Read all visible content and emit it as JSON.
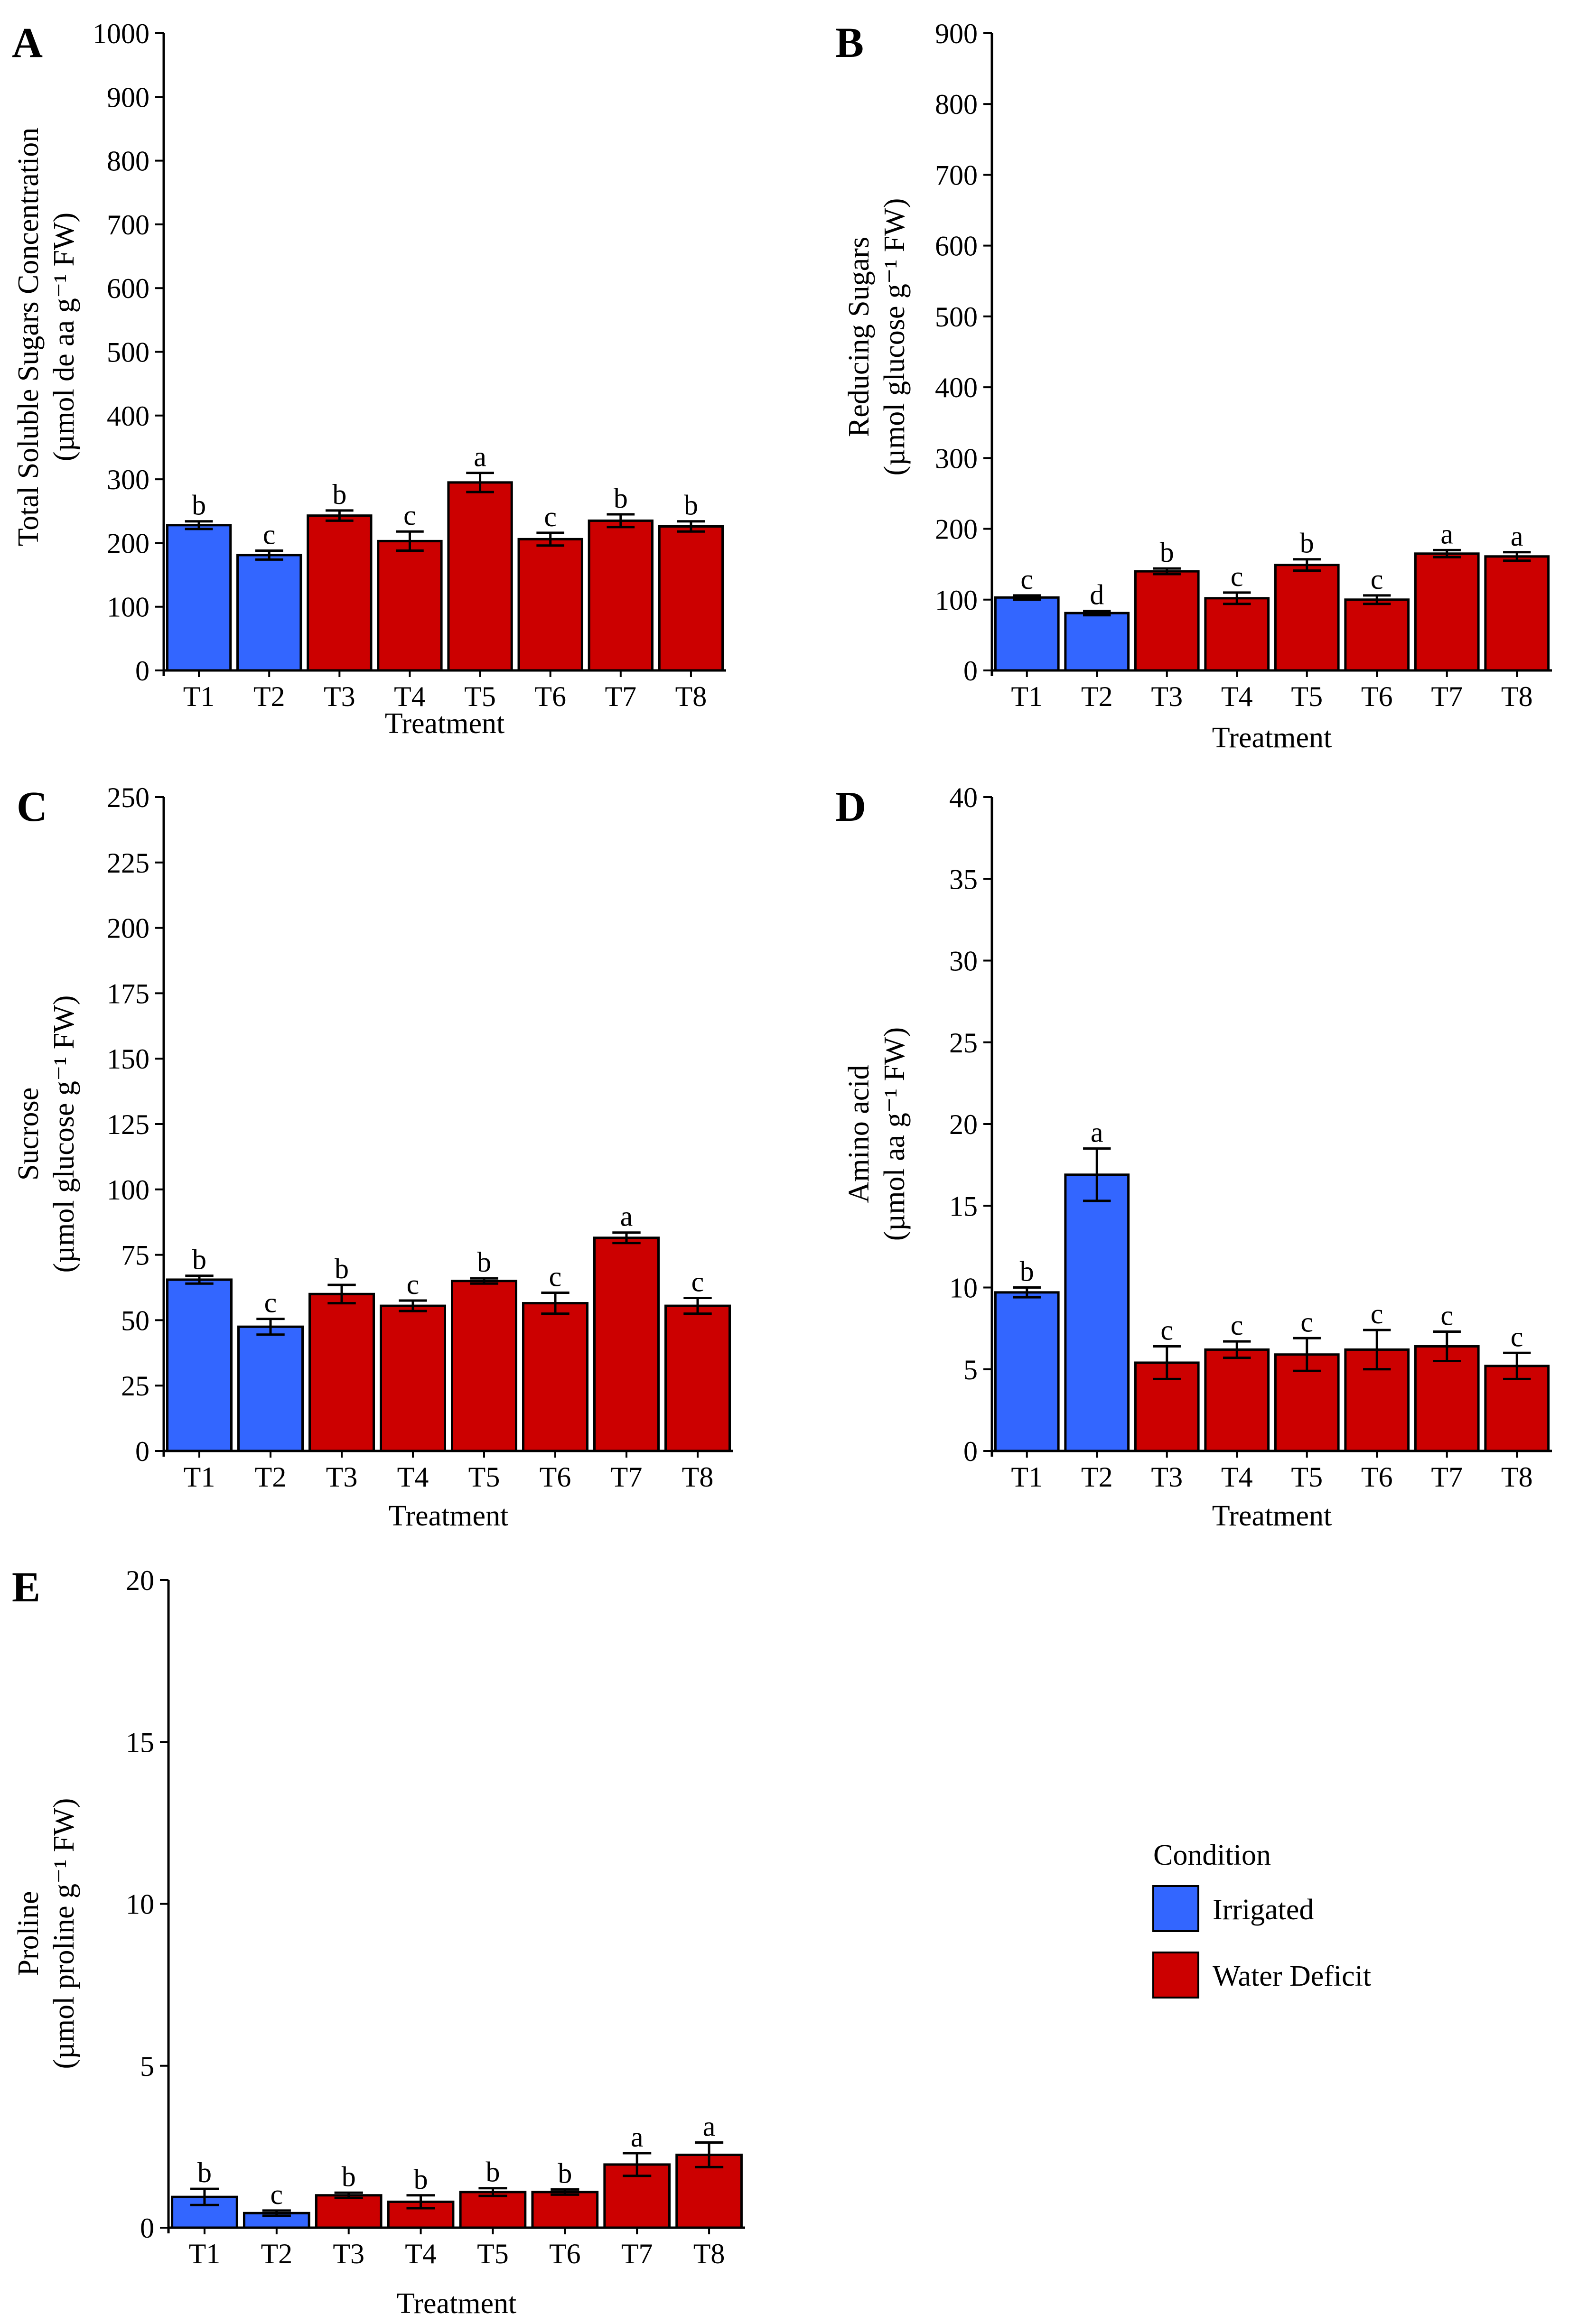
{
  "colors": {
    "irrigated": "#3366FF",
    "water_deficit": "#CC0000",
    "axis": "#000000"
  },
  "legend": {
    "title": "Condition",
    "items": [
      {
        "label": "Irrigated",
        "color": "#3366FF"
      },
      {
        "label": "Water Deficit",
        "color": "#CC0000"
      }
    ]
  },
  "chart_data": [
    {
      "panel": "A",
      "type": "bar",
      "title": "",
      "xlabel": "Treatment",
      "ylabel_line1": "Total Soluble Sugars Concentration",
      "ylabel_line2": "(µmol de aa g⁻¹ FW)",
      "ylim": [
        0,
        1000
      ],
      "yticks": [
        0,
        100,
        200,
        300,
        400,
        500,
        600,
        700,
        800,
        900,
        1000
      ],
      "categories": [
        "T1",
        "T2",
        "T3",
        "T4",
        "T5",
        "T6",
        "T7",
        "T8"
      ],
      "conditions": [
        "Irrigated",
        "Irrigated",
        "Water Deficit",
        "Water Deficit",
        "Water Deficit",
        "Water Deficit",
        "Water Deficit",
        "Water Deficit"
      ],
      "values": [
        228,
        181,
        243,
        203,
        295,
        206,
        235,
        226
      ],
      "errors": [
        6,
        7,
        8,
        15,
        15,
        10,
        10,
        8
      ],
      "letters": [
        "b",
        "c",
        "b",
        "c",
        "a",
        "c",
        "b",
        "b"
      ]
    },
    {
      "panel": "B",
      "type": "bar",
      "title": "",
      "xlabel": "Treatment",
      "ylabel_line1": "Reducing Sugars",
      "ylabel_line2": "(µmol glucose g⁻¹ FW)",
      "ylim": [
        0,
        900
      ],
      "yticks": [
        0,
        100,
        200,
        300,
        400,
        500,
        600,
        700,
        800,
        900
      ],
      "categories": [
        "T1",
        "T2",
        "T3",
        "T4",
        "T5",
        "T6",
        "T7",
        "T8"
      ],
      "conditions": [
        "Irrigated",
        "Irrigated",
        "Water Deficit",
        "Water Deficit",
        "Water Deficit",
        "Water Deficit",
        "Water Deficit",
        "Water Deficit"
      ],
      "values": [
        103,
        81,
        140,
        102,
        149,
        100,
        165,
        161
      ],
      "errors": [
        3,
        3,
        4,
        8,
        8,
        6,
        5,
        6
      ],
      "letters": [
        "c",
        "d",
        "b",
        "c",
        "b",
        "c",
        "a",
        "a"
      ]
    },
    {
      "panel": "C",
      "type": "bar",
      "title": "",
      "xlabel": "Treatment",
      "ylabel_line1": "Sucrose",
      "ylabel_line2": "(µmol glucose g⁻¹ FW)",
      "ylim": [
        0,
        250
      ],
      "yticks": [
        0,
        25,
        50,
        75,
        100,
        125,
        150,
        175,
        200,
        225,
        250
      ],
      "categories": [
        "T1",
        "T2",
        "T3",
        "T4",
        "T5",
        "T6",
        "T7",
        "T8"
      ],
      "conditions": [
        "Irrigated",
        "Irrigated",
        "Water Deficit",
        "Water Deficit",
        "Water Deficit",
        "Water Deficit",
        "Water Deficit",
        "Water Deficit"
      ],
      "values": [
        65.5,
        47.5,
        60,
        55.5,
        65,
        56.5,
        81.5,
        55.5
      ],
      "errors": [
        1.5,
        3,
        3.5,
        2,
        1,
        4,
        2,
        3
      ],
      "letters": [
        "b",
        "c",
        "b",
        "c",
        "b",
        "c",
        "a",
        "c"
      ]
    },
    {
      "panel": "D",
      "type": "bar",
      "title": "",
      "xlabel": "Treatment",
      "ylabel_line1": "Amino acid",
      "ylabel_line2": "(µmol aa g⁻¹ FW)",
      "ylim": [
        0,
        40
      ],
      "yticks": [
        0,
        5,
        10,
        15,
        20,
        25,
        30,
        35,
        40
      ],
      "categories": [
        "T1",
        "T2",
        "T3",
        "T4",
        "T5",
        "T6",
        "T7",
        "T8"
      ],
      "conditions": [
        "Irrigated",
        "Irrigated",
        "Water Deficit",
        "Water Deficit",
        "Water Deficit",
        "Water Deficit",
        "Water Deficit",
        "Water Deficit"
      ],
      "values": [
        9.7,
        16.9,
        5.4,
        6.2,
        5.9,
        6.2,
        6.4,
        5.2
      ],
      "errors": [
        0.3,
        1.6,
        1.0,
        0.5,
        1.0,
        1.2,
        0.9,
        0.8
      ],
      "letters": [
        "b",
        "a",
        "c",
        "c",
        "c",
        "c",
        "c",
        "c"
      ]
    },
    {
      "panel": "E",
      "type": "bar",
      "title": "",
      "xlabel": "Treatment",
      "ylabel_line1": "Proline",
      "ylabel_line2": "(µmol proline g⁻¹ FW)",
      "ylim": [
        0,
        20
      ],
      "yticks": [
        0,
        5,
        10,
        15,
        20
      ],
      "categories": [
        "T1",
        "T2",
        "T3",
        "T4",
        "T5",
        "T6",
        "T7",
        "T8"
      ],
      "conditions": [
        "Irrigated",
        "Irrigated",
        "Water Deficit",
        "Water Deficit",
        "Water Deficit",
        "Water Deficit",
        "Water Deficit",
        "Water Deficit"
      ],
      "values": [
        0.95,
        0.45,
        1.0,
        0.8,
        1.1,
        1.1,
        1.95,
        2.25
      ],
      "errors": [
        0.25,
        0.08,
        0.08,
        0.2,
        0.12,
        0.08,
        0.35,
        0.38
      ],
      "letters": [
        "b",
        "c",
        "b",
        "b",
        "b",
        "b",
        "a",
        "a"
      ]
    }
  ]
}
